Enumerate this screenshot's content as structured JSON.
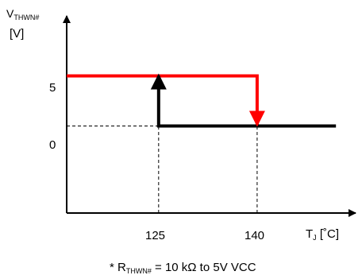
{
  "chart_data": {
    "type": "line",
    "title": "",
    "ylabel": {
      "main": "V",
      "sub": "THWN#",
      "unit": "[V]"
    },
    "xlabel": {
      "main": "T",
      "sub": "J",
      "unit": "[˚C]"
    },
    "y_ticks": [
      "5",
      "0"
    ],
    "x_ticks": [
      "125",
      "140"
    ],
    "xlim": [
      111,
      155
    ],
    "ylim": [
      -8.7,
      11
    ],
    "series": [
      {
        "color": "#ff0000",
        "x": [
          111,
          140,
          140
        ],
        "y": [
          5,
          5,
          0
        ]
      },
      {
        "color": "#000000",
        "x": [
          125,
          125,
          152
        ],
        "y": [
          5,
          0,
          0
        ]
      }
    ],
    "arrows": [
      {
        "color": "#ff0000",
        "x": 140,
        "y": 0,
        "direction": "down"
      },
      {
        "color": "#000000",
        "x": 125,
        "y": 5,
        "direction": "up"
      }
    ],
    "guides": [
      {
        "from": [
          111,
          0
        ],
        "to": [
          125,
          0
        ]
      },
      {
        "from": [
          125,
          -8.7
        ],
        "to": [
          125,
          0
        ]
      },
      {
        "from": [
          140,
          -8.7
        ],
        "to": [
          140,
          0
        ]
      }
    ],
    "footnote": {
      "star": "*",
      "r": "R",
      "sub": "THWN#",
      "text": " = 10 kΩ to 5V VCC"
    }
  }
}
